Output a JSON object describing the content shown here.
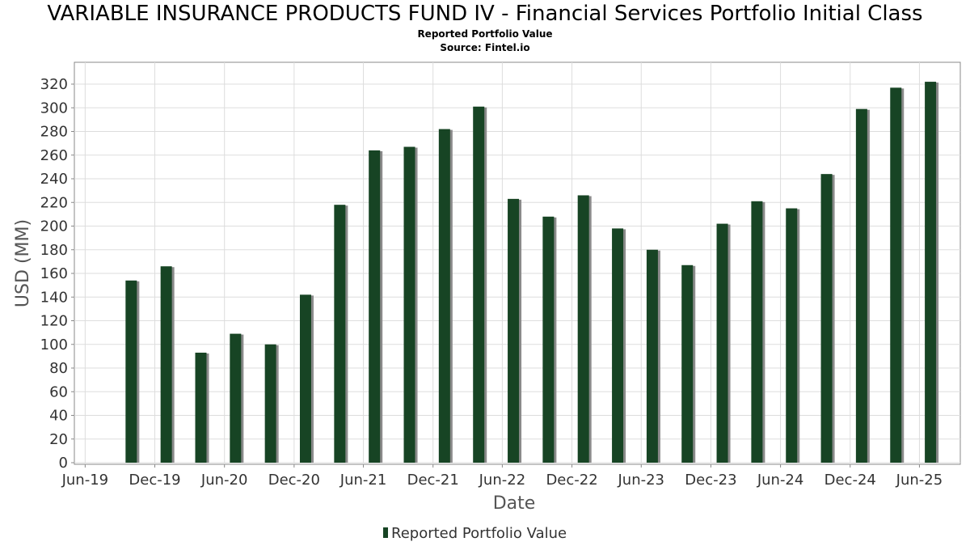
{
  "header": {
    "title": "VARIABLE INSURANCE PRODUCTS FUND IV - Financial Services Portfolio Initial Class",
    "subtitle": "Reported Portfolio Value",
    "source": "Source: Fintel.io"
  },
  "colors": {
    "bar": "#174424",
    "bar_shadow": "#8a8a8a",
    "grid": "#dddddd",
    "plot_border": "#888888"
  },
  "chart_data": {
    "type": "bar",
    "title": "VARIABLE INSURANCE PRODUCTS FUND IV - Financial Services Portfolio Initial Class",
    "subtitle": "Reported Portfolio Value",
    "xlabel": "Date",
    "ylabel": "USD (MM)",
    "ylim": [
      0,
      330
    ],
    "yticks": [
      0,
      20,
      40,
      60,
      80,
      100,
      120,
      140,
      160,
      180,
      200,
      220,
      240,
      260,
      280,
      300,
      320
    ],
    "xlim": [
      "2019-05-10",
      "2025-09-10"
    ],
    "xticks": [
      {
        "label": "Jun-19",
        "date": "2019-06-01"
      },
      {
        "label": "Dec-19",
        "date": "2019-12-01"
      },
      {
        "label": "Jun-20",
        "date": "2020-06-01"
      },
      {
        "label": "Dec-20",
        "date": "2020-12-01"
      },
      {
        "label": "Jun-21",
        "date": "2021-06-01"
      },
      {
        "label": "Dec-21",
        "date": "2021-12-01"
      },
      {
        "label": "Jun-22",
        "date": "2022-06-01"
      },
      {
        "label": "Dec-22",
        "date": "2022-12-01"
      },
      {
        "label": "Jun-23",
        "date": "2023-06-01"
      },
      {
        "label": "Dec-23",
        "date": "2023-12-01"
      },
      {
        "label": "Jun-24",
        "date": "2024-06-01"
      },
      {
        "label": "Dec-24",
        "date": "2024-12-01"
      },
      {
        "label": "Jun-25",
        "date": "2025-06-01"
      }
    ],
    "grid": true,
    "legend_position": "bottom",
    "series": [
      {
        "name": "Reported Portfolio Value",
        "points": [
          {
            "x": "2019-09-30",
            "y": 154
          },
          {
            "x": "2019-12-31",
            "y": 166
          },
          {
            "x": "2020-03-31",
            "y": 93
          },
          {
            "x": "2020-06-30",
            "y": 109
          },
          {
            "x": "2020-09-30",
            "y": 100
          },
          {
            "x": "2020-12-31",
            "y": 142
          },
          {
            "x": "2021-03-31",
            "y": 218
          },
          {
            "x": "2021-06-30",
            "y": 264
          },
          {
            "x": "2021-09-30",
            "y": 267
          },
          {
            "x": "2021-12-31",
            "y": 282
          },
          {
            "x": "2022-03-31",
            "y": 301
          },
          {
            "x": "2022-06-30",
            "y": 223
          },
          {
            "x": "2022-09-30",
            "y": 208
          },
          {
            "x": "2022-12-31",
            "y": 226
          },
          {
            "x": "2023-03-31",
            "y": 198
          },
          {
            "x": "2023-06-30",
            "y": 180
          },
          {
            "x": "2023-09-30",
            "y": 167
          },
          {
            "x": "2023-12-31",
            "y": 202
          },
          {
            "x": "2024-03-31",
            "y": 221
          },
          {
            "x": "2024-06-30",
            "y": 215
          },
          {
            "x": "2024-09-30",
            "y": 244
          },
          {
            "x": "2024-12-31",
            "y": 299
          },
          {
            "x": "2025-03-31",
            "y": 317
          },
          {
            "x": "2025-06-30",
            "y": 322
          }
        ]
      }
    ]
  }
}
